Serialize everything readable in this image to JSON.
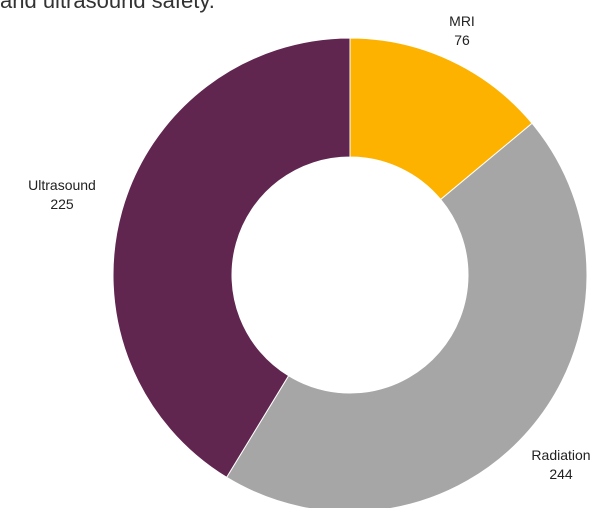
{
  "chart_data": {
    "type": "pie",
    "variant": "donut",
    "title": "and ultrasound safety.",
    "slices": [
      {
        "label": "MRI",
        "value": 76,
        "color": "#FDB200"
      },
      {
        "label": "Radiation",
        "value": 244,
        "color": "#A6A6A6"
      },
      {
        "label": "Ultrasound",
        "value": 225,
        "color": "#602650"
      }
    ],
    "start_angle": "12 o'clock",
    "direction": "clockwise",
    "legend": "none",
    "data_labels": "outside, category name and value"
  }
}
